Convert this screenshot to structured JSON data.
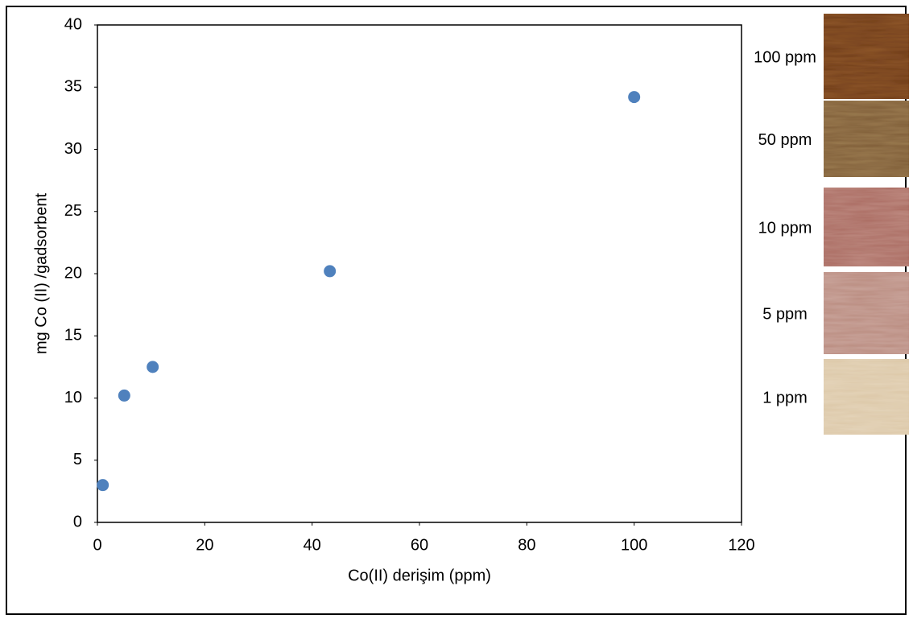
{
  "chart_data": {
    "type": "scatter",
    "xlabel": "Co(II) derişim (ppm)",
    "ylabel": "mg Co (II) /gadsorbent",
    "x": [
      1,
      5,
      10.3,
      43.3,
      100
    ],
    "values": [
      3.0,
      10.2,
      12.5,
      20.2,
      34.2
    ],
    "color": "#4f81bd",
    "xlim": [
      0,
      120
    ],
    "ylim": [
      0,
      40
    ],
    "xticks": [
      0,
      20,
      40,
      60,
      80,
      100,
      120
    ],
    "yticks": [
      0,
      5,
      10,
      15,
      20,
      25,
      30,
      35,
      40
    ]
  },
  "samples": [
    {
      "label": "100 ppm",
      "color": "#6e3a18"
    },
    {
      "label": "50 ppm",
      "color": "#7d5a35"
    },
    {
      "label": "10 ppm",
      "color": "#a9695f"
    },
    {
      "label": "5 ppm",
      "color": "#b98a7e"
    },
    {
      "label": "1 ppm",
      "color": "#dcc7a6"
    }
  ]
}
